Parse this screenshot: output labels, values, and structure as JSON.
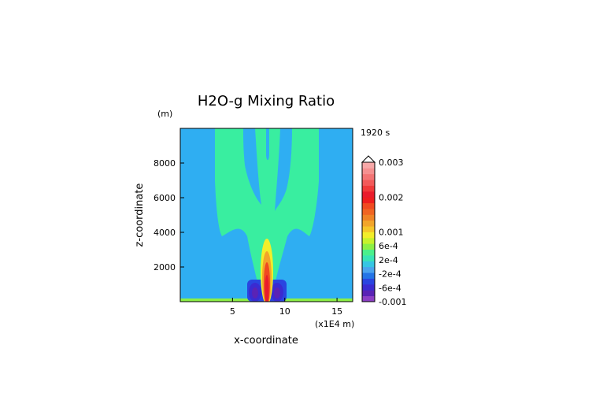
{
  "chart_data": {
    "type": "heatmap",
    "title": "H2O-g Mixing Ratio",
    "time_label": "1920 s",
    "xlabel": "x-coordinate",
    "ylabel": "z-coordinate",
    "x_unit": "(x1E4 m)",
    "y_unit": "(m)",
    "xlim": [
      0,
      16.5
    ],
    "ylim": [
      0,
      10000
    ],
    "x_ticks": [
      5,
      10,
      15
    ],
    "y_ticks": [
      2000,
      4000,
      6000,
      8000
    ],
    "colorbar": {
      "labels": [
        "0.003",
        "0.002",
        "0.001",
        "6e-4",
        "2e-4",
        "-2e-4",
        "-6e-4",
        "-0.001"
      ],
      "label_levels": [
        0.003,
        0.002,
        0.001,
        0.0006,
        0.0002,
        -0.0002,
        -0.0006,
        -0.001
      ],
      "range": [
        -0.001,
        0.003
      ],
      "extend": "max",
      "colors": [
        "#8d3fc6",
        "#5a23b5",
        "#3a2bd1",
        "#2a45e0",
        "#2474e6",
        "#4aa3ee",
        "#36c6e3",
        "#38e4b6",
        "#4af08c",
        "#8cf046",
        "#c7f22c",
        "#f2ee2a",
        "#f5c62a",
        "#f2a52a",
        "#ef8326",
        "#f06422",
        "#f04a20",
        "#ee1e1e",
        "#e91c2c",
        "#f03a3a",
        "#f25a5a",
        "#f37474",
        "#f59090",
        "#f7a8a8"
      ]
    },
    "background_color": "#2faef2",
    "plume_color": "#39eea0"
  }
}
